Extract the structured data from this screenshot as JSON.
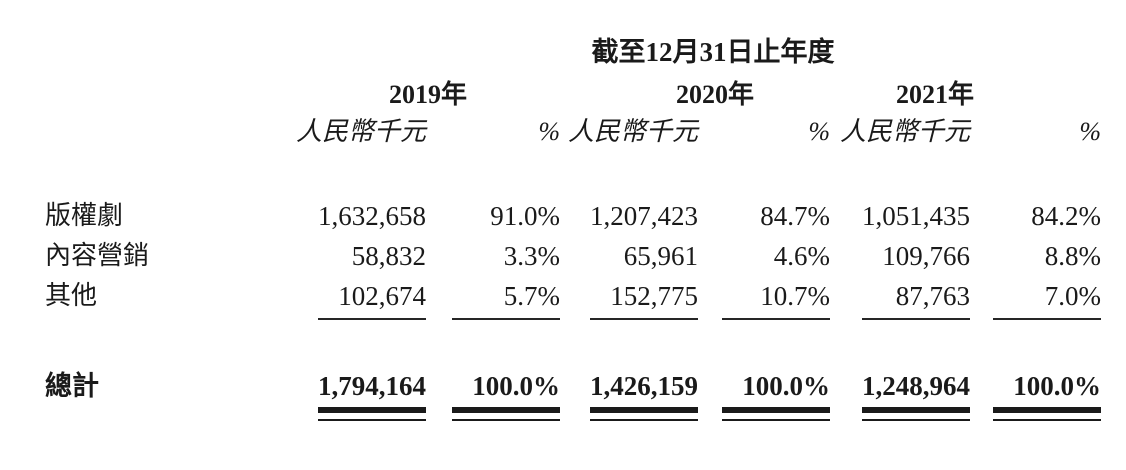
{
  "table": {
    "period_header": "截至12月31日止年度",
    "years": [
      "2019年",
      "2020年",
      "2021年"
    ],
    "unit_label": "人民幣千元",
    "percent_label": "%",
    "rows": [
      {
        "label": "版權劇",
        "values": [
          "1,632,658",
          "91.0%",
          "1,207,423",
          "84.7%",
          "1,051,435",
          "84.2%"
        ]
      },
      {
        "label": "內容營銷",
        "values": [
          "58,832",
          "3.3%",
          "65,961",
          "4.6%",
          "109,766",
          "8.8%"
        ]
      },
      {
        "label": "其他",
        "values": [
          "102,674",
          "5.7%",
          "152,775",
          "10.7%",
          "87,763",
          "7.0%"
        ]
      }
    ],
    "total_row": {
      "label": "總計",
      "values": [
        "1,794,164",
        "100.0%",
        "1,426,159",
        "100.0%",
        "1,248,964",
        "100.0%"
      ]
    },
    "text_color": "#1a1a1a"
  }
}
